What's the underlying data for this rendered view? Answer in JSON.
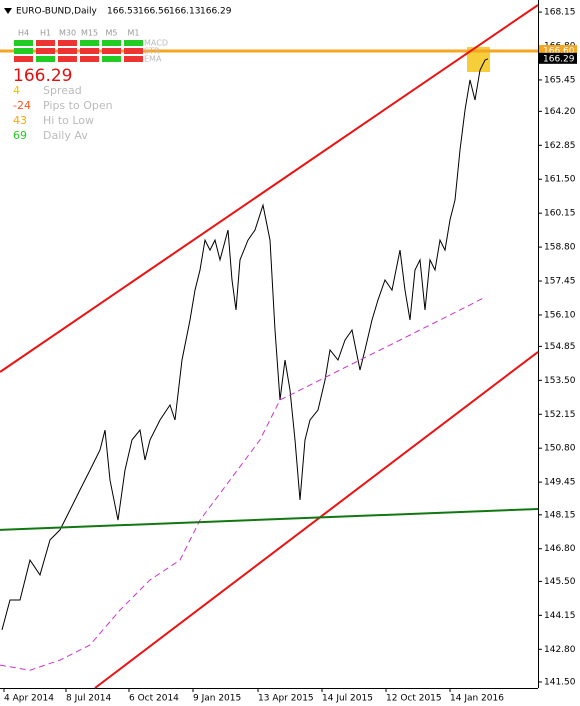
{
  "chart_data": {
    "type": "line",
    "symbol": "EURO-BUND,Daily",
    "ohlc": [
      166.53,
      166.56,
      166.13,
      166.29
    ],
    "xlim": [
      0,
      538
    ],
    "xticks": [
      {
        "value": 4,
        "label": "4 Apr 2014"
      },
      {
        "value": 66,
        "label": "8 Jul 2014"
      },
      {
        "value": 129,
        "label": "6 Oct 2014"
      },
      {
        "value": 193,
        "label": "9 Jan 2015"
      },
      {
        "value": 258,
        "label": "13 Apr 2015"
      },
      {
        "value": 322,
        "label": "14 Jul 2015"
      },
      {
        "value": 386,
        "label": "12 Oct 2015"
      },
      {
        "value": 450,
        "label": "14 Jan 2016"
      }
    ],
    "ylim": [
      141.26,
      168.63
    ],
    "yticks": [
      168.15,
      {
        "value": 166.8,
        "label": "166.80"
      },
      165.45,
      {
        "value": 164.2,
        "label": "164.20"
      },
      162.85,
      {
        "value": 161.5,
        "label": "161.50"
      },
      160.15,
      {
        "value": 158.8,
        "label": "158.80"
      },
      157.45,
      {
        "value": 156.1,
        "label": "156.10"
      },
      154.85,
      {
        "value": 153.5,
        "label": "153.50"
      },
      152.15,
      {
        "value": 150.8,
        "label": "150.80"
      },
      149.45,
      148.15,
      {
        "value": 146.8,
        "label": "146.80"
      },
      {
        "value": 145.5,
        "label": "145.50"
      },
      144.15,
      {
        "value": 142.8,
        "label": "142.80"
      },
      {
        "value": 141.5,
        "label": "141.50"
      }
    ],
    "series": [
      {
        "color": "#000000",
        "width": 1,
        "x": [
          2,
          10,
          20,
          30,
          40,
          50,
          60,
          70,
          80,
          90,
          100,
          105,
          110,
          118,
          125,
          132,
          140,
          145,
          150,
          160,
          170,
          175,
          182,
          190,
          195,
          200,
          205,
          210,
          215,
          220,
          228,
          232,
          236,
          240,
          248,
          255,
          263,
          270,
          275,
          280,
          285,
          290,
          295,
          300,
          305,
          310,
          318,
          325,
          330,
          338,
          345,
          352,
          360,
          365,
          372,
          378,
          385,
          392,
          400,
          405,
          410,
          415,
          420,
          425,
          430,
          435,
          440,
          445,
          450,
          455,
          460,
          465,
          470,
          475,
          480,
          485,
          488
        ],
        "values": [
          143.57,
          144.76,
          144.76,
          146.35,
          145.76,
          147.15,
          147.55,
          148.34,
          149.14,
          149.93,
          150.73,
          151.52,
          149.53,
          147.94,
          149.93,
          151.13,
          151.52,
          150.33,
          151.13,
          151.92,
          152.52,
          151.92,
          154.31,
          155.9,
          157.09,
          157.89,
          159.08,
          158.68,
          159.08,
          158.29,
          159.48,
          157.49,
          156.3,
          158.29,
          159.08,
          159.48,
          160.47,
          159.08,
          155.5,
          152.72,
          154.31,
          153.11,
          151.13,
          148.74,
          151.13,
          151.92,
          152.32,
          153.51,
          154.71,
          154.31,
          155.1,
          155.5,
          153.91,
          154.71,
          155.9,
          156.7,
          157.49,
          157.09,
          158.68,
          157.09,
          155.9,
          157.89,
          158.29,
          156.3,
          158.29,
          157.89,
          159.08,
          158.68,
          159.88,
          160.67,
          162.66,
          164.25,
          165.45,
          164.65,
          165.84,
          166.24,
          166.29
        ]
      },
      {
        "color": "#cc33cc",
        "width": 1,
        "dashed": true,
        "x": [
          0,
          30,
          60,
          90,
          120,
          150,
          180,
          200,
          230,
          260,
          280,
          300,
          330,
          360,
          390,
          420,
          450,
          470,
          485
        ],
        "values": [
          142.17,
          141.97,
          142.37,
          142.97,
          144.36,
          145.56,
          146.35,
          147.94,
          149.53,
          151.13,
          152.72,
          153.11,
          153.71,
          154.31,
          154.9,
          155.5,
          156.1,
          156.5,
          156.81
        ]
      },
      {
        "color": "#ee1111",
        "width": 2,
        "x": [
          0,
          538
        ],
        "values": [
          153.83,
          168.43
        ]
      },
      {
        "color": "#ee1111",
        "width": 2,
        "x": [
          95,
          538
        ],
        "values": [
          141.26,
          154.63
        ]
      },
      {
        "color": "#117711",
        "width": 2,
        "x": [
          0,
          538
        ],
        "values": [
          147.55,
          148.38
        ]
      }
    ],
    "levels": [
      {
        "value": 166.6,
        "label": "166.60",
        "color": "#f5a623",
        "width": 3
      },
      {
        "value": 166.29,
        "color": "#000000",
        "width": 0
      }
    ],
    "panel": {
      "timeframes": [
        "H4",
        "H1",
        "M30",
        "M15",
        "M5",
        "M1"
      ],
      "rows": [
        [
          "#22cc22",
          "#ee3333",
          "#ee3333",
          "#22cc22",
          "#22cc22",
          "#22cc22"
        ],
        [
          "#22cc22",
          "#ee3333",
          "#ee3333",
          "#ee3333",
          "#ee3333",
          "#ee3333"
        ],
        [
          "#ee3333",
          "#22cc22",
          "#ee3333",
          "#ee3333",
          "#22cc22",
          "#ee3333"
        ]
      ],
      "indicators": [
        "MACD",
        "STR",
        "EMA"
      ],
      "price": "166.29",
      "stats": [
        {
          "value": 4,
          "label": "Spread",
          "color": "#e8c000"
        },
        {
          "value": -24,
          "label": "Pips to Open",
          "color": "#ff5522"
        },
        {
          "value": 43,
          "label": "Hi to Low",
          "color": "#ffa500"
        },
        {
          "value": 69,
          "label": "Daily Av",
          "color": "#22cc22"
        }
      ]
    }
  }
}
